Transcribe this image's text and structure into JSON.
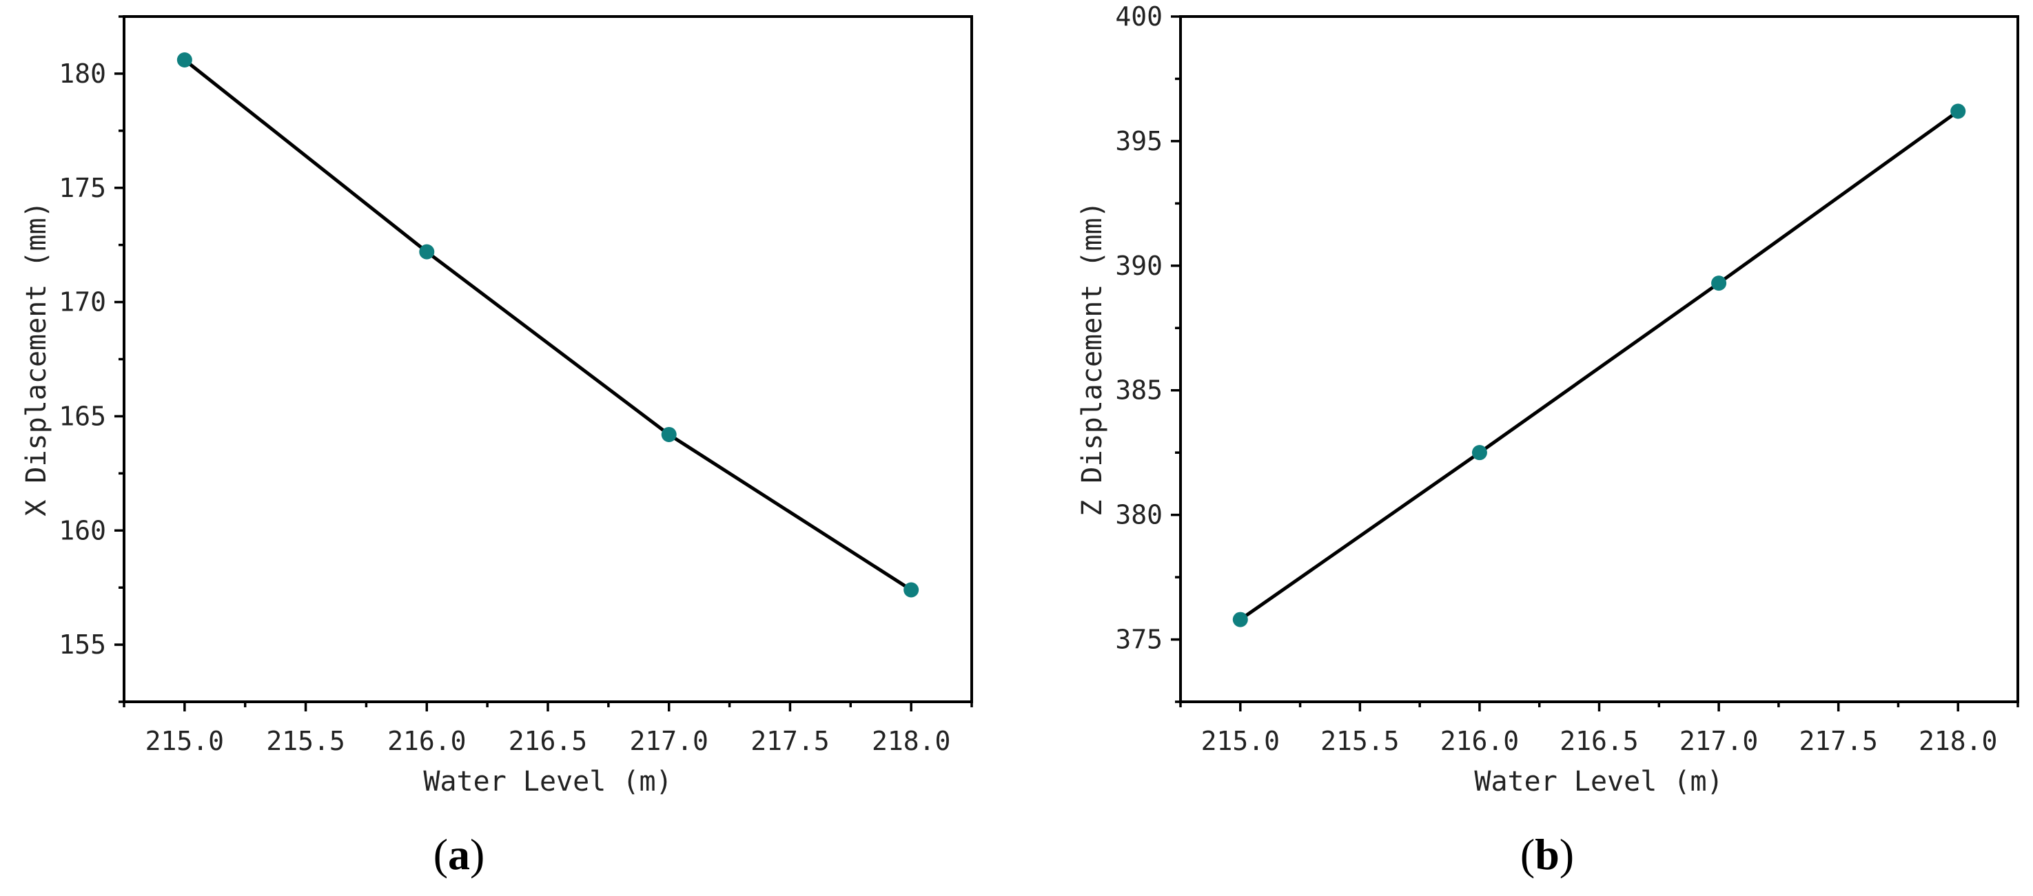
{
  "colors": {
    "marker": "#0f7f7f",
    "line": "#000000"
  },
  "chart_data": [
    {
      "type": "line",
      "panel_label": {
        "open": "(",
        "letter": "a",
        "close": ")"
      },
      "title": "",
      "xlabel": "Water Level (m)",
      "ylabel": "X Displacement (mm)",
      "xlim": [
        214.75,
        218.25
      ],
      "ylim": [
        152.5,
        182.5
      ],
      "xticks": [
        "215.0",
        "215.5",
        "216.0",
        "216.5",
        "217.0",
        "217.5",
        "218.0"
      ],
      "yticks": [
        "155",
        "160",
        "165",
        "170",
        "175",
        "180"
      ],
      "grid": false,
      "x": [
        215.0,
        216.0,
        217.0,
        218.0
      ],
      "y": [
        180.6,
        172.2,
        164.2,
        157.4
      ]
    },
    {
      "type": "line",
      "panel_label": {
        "open": "(",
        "letter": "b",
        "close": ")"
      },
      "title": "",
      "xlabel": "Water Level (m)",
      "ylabel": "Z Displacement (mm)",
      "xlim": [
        214.75,
        218.25
      ],
      "ylim": [
        372.5,
        400.0
      ],
      "xticks": [
        "215.0",
        "215.5",
        "216.0",
        "216.5",
        "217.0",
        "217.5",
        "218.0"
      ],
      "yticks": [
        "375",
        "380",
        "385",
        "390",
        "395",
        "400"
      ],
      "grid": false,
      "x": [
        215.0,
        216.0,
        217.0,
        218.0
      ],
      "y": [
        375.8,
        382.5,
        389.3,
        396.2
      ]
    }
  ]
}
